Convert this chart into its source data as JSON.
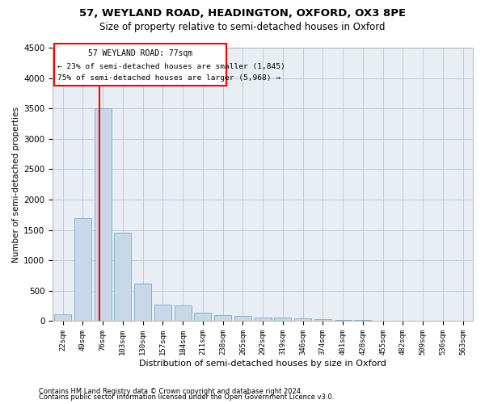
{
  "title1": "57, WEYLAND ROAD, HEADINGTON, OXFORD, OX3 8PE",
  "title2": "Size of property relative to semi-detached houses in Oxford",
  "xlabel": "Distribution of semi-detached houses by size in Oxford",
  "ylabel": "Number of semi-detached properties",
  "footnote1": "Contains HM Land Registry data © Crown copyright and database right 2024.",
  "footnote2": "Contains public sector information licensed under the Open Government Licence v3.0.",
  "categories": [
    "22sqm",
    "49sqm",
    "76sqm",
    "103sqm",
    "130sqm",
    "157sqm",
    "184sqm",
    "211sqm",
    "238sqm",
    "265sqm",
    "292sqm",
    "319sqm",
    "346sqm",
    "374sqm",
    "401sqm",
    "428sqm",
    "455sqm",
    "482sqm",
    "509sqm",
    "536sqm",
    "563sqm"
  ],
  "values": [
    110,
    1700,
    3500,
    1450,
    620,
    270,
    260,
    140,
    100,
    90,
    60,
    55,
    50,
    30,
    20,
    15,
    12,
    10,
    8,
    6,
    5
  ],
  "bar_color": "#c8d8e8",
  "bar_edge_color": "#7aaabe",
  "grid_color": "#b8ccd8",
  "bg_color": "#e8eef4",
  "annotation_text1": "57 WEYLAND ROAD: 77sqm",
  "annotation_text2": "← 23% of semi-detached houses are smaller (1,845)",
  "annotation_text3": "75% of semi-detached houses are larger (5,968) →",
  "ylim": [
    0,
    4500
  ],
  "yticks": [
    0,
    500,
    1000,
    1500,
    2000,
    2500,
    3000,
    3500,
    4000,
    4500
  ],
  "prop_line_index": 2
}
